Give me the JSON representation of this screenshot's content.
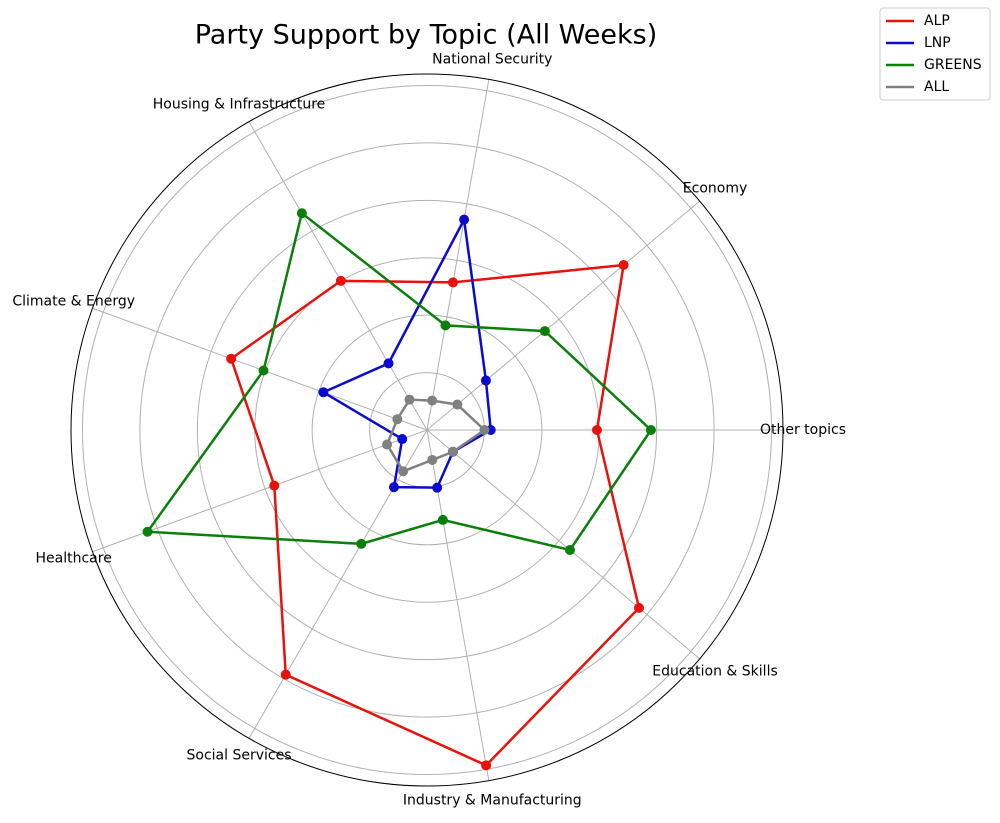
{
  "chart_data": {
    "type": "radar",
    "title": "Party Support by Topic (All Weeks)",
    "categories": [
      "Other topics",
      "Economy",
      "National Security",
      "Housing & Infrastructure",
      "Climate & Energy",
      "Healthcare",
      "Social Services",
      "Industry & Manufacturing",
      "Education & Skills"
    ],
    "series": [
      {
        "name": "ALP",
        "color": "#e8120c",
        "values": [
          2.96,
          4.47,
          2.61,
          3.0,
          3.63,
          2.83,
          4.92,
          5.93,
          4.82
        ]
      },
      {
        "name": "LNP",
        "color": "#0a0ad0",
        "values": [
          1.11,
          1.34,
          3.72,
          1.34,
          1.92,
          0.46,
          1.15,
          1.02,
          0.59
        ]
      },
      {
        "name": "GREENS",
        "color": "#0a800a",
        "values": [
          3.9,
          2.68,
          1.85,
          4.36,
          3.03,
          5.18,
          2.29,
          1.59,
          3.25
        ]
      },
      {
        "name": "ALL",
        "color": "#808080",
        "values": [
          1.0,
          0.69,
          0.52,
          0.61,
          0.55,
          0.74,
          0.83,
          0.53,
          0.59
        ]
      }
    ],
    "rlim": [
      0,
      6.2
    ],
    "rticks": [
      1,
      2,
      3,
      4,
      5,
      6
    ],
    "grid": true,
    "legend": "upper right"
  }
}
